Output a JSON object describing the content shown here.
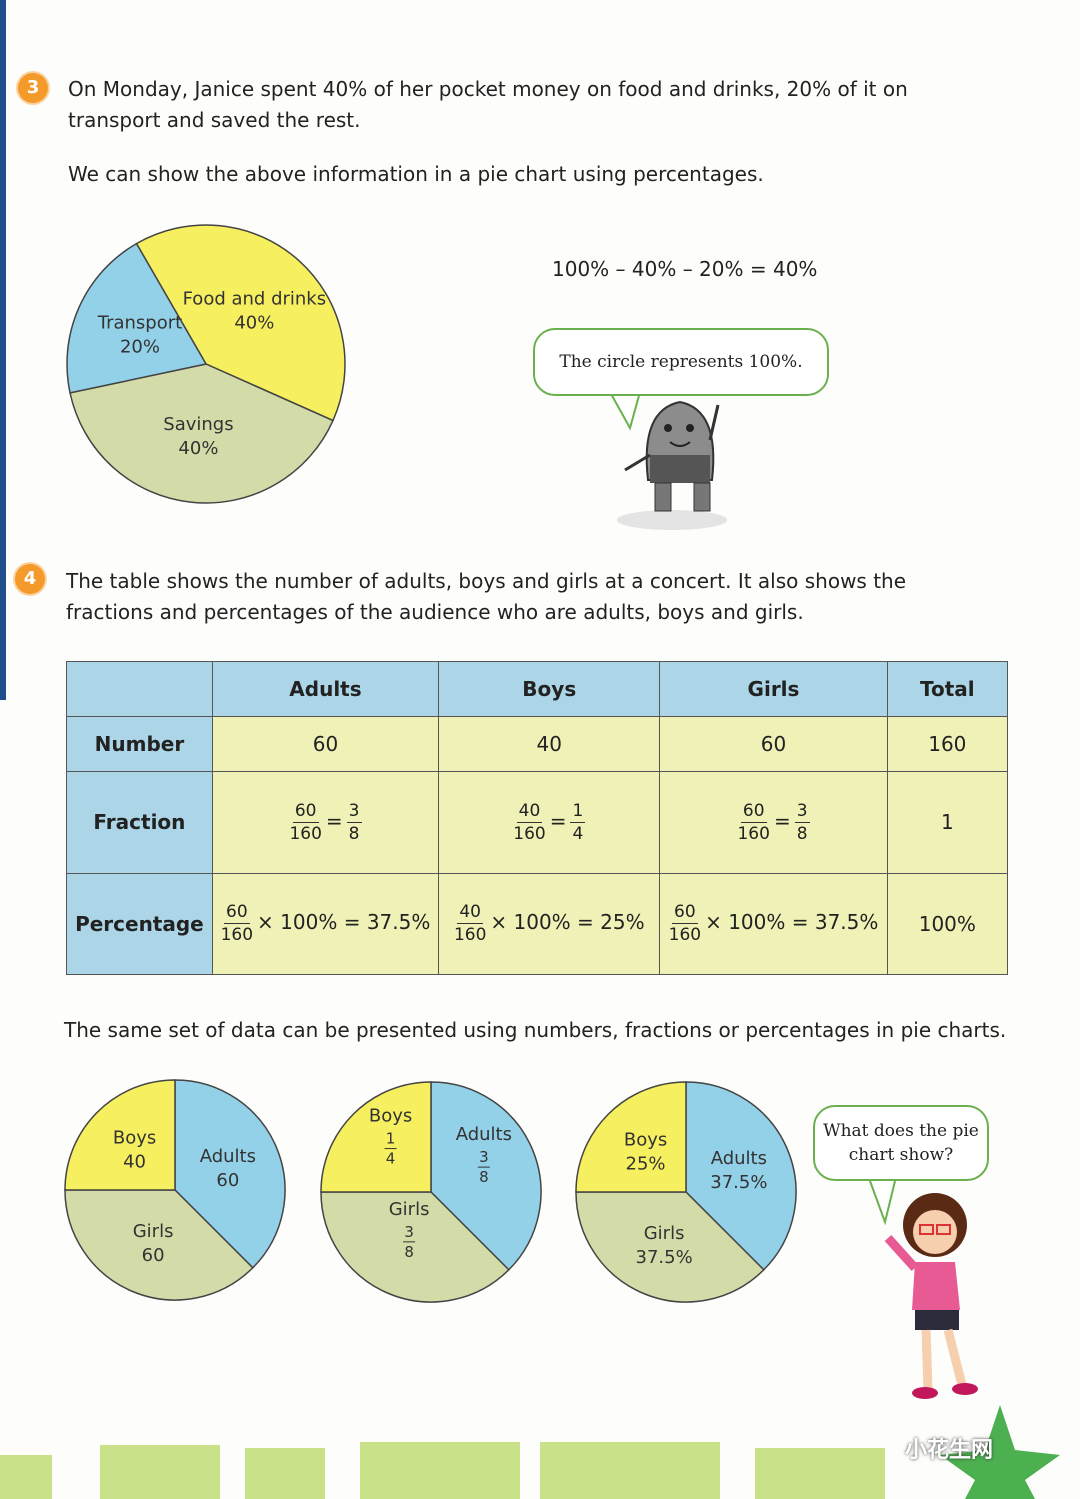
{
  "section3": {
    "badge": "3",
    "intro": "On Monday, Janice spent 40% of her pocket money on food and drinks, 20% of it on transport and saved the rest.",
    "note": "We can show the above information in a pie chart using percentages.",
    "pie": {
      "type": "pie",
      "slices": [
        {
          "name": "Food and drinks",
          "value": 40,
          "value_label": "40%",
          "color": "#f6ef5f"
        },
        {
          "name": "Savings",
          "value": 40,
          "value_label": "40%",
          "color": "#d3dba8"
        },
        {
          "name": "Transport",
          "value": 20,
          "value_label": "20%",
          "color": "#93d1e8"
        }
      ]
    },
    "equation": "100% – 40% – 20% = 40%",
    "speech": "The circle represents 100%."
  },
  "section4": {
    "badge": "4",
    "intro": "The table shows the number of adults, boys and girls at a concert. It also shows the fractions and percentages of the audience who are adults, boys and girls.",
    "table": {
      "columns": [
        "Adults",
        "Boys",
        "Girls",
        "Total"
      ],
      "rows": [
        {
          "label": "Number",
          "cells": [
            "60",
            "40",
            "60",
            "160"
          ]
        },
        {
          "label": "Fraction",
          "cells": [
            {
              "num": "60",
              "den": "160",
              "eq_num": "3",
              "eq_den": "8"
            },
            {
              "num": "40",
              "den": "160",
              "eq_num": "1",
              "eq_den": "4"
            },
            {
              "num": "60",
              "den": "160",
              "eq_num": "3",
              "eq_den": "8"
            },
            "1"
          ]
        },
        {
          "label": "Percentage",
          "cells": [
            {
              "num": "60",
              "den": "160",
              "rest": "× 100% = 37.5%"
            },
            {
              "num": "40",
              "den": "160",
              "rest": "× 100% = 25%"
            },
            {
              "num": "60",
              "den": "160",
              "rest": "× 100% = 37.5%"
            },
            "100%"
          ]
        }
      ]
    },
    "note": "The same set of data can be presented using numbers, fractions or percentages in pie charts.",
    "pies": [
      {
        "type": "pie",
        "slices": [
          {
            "name": "Adults",
            "value": 60,
            "color": "#93d1e8"
          },
          {
            "name": "Girls",
            "value": 60,
            "color": "#d3dba8"
          },
          {
            "name": "Boys",
            "value": 40,
            "color": "#f6ef5f"
          }
        ]
      },
      {
        "type": "pie",
        "slices": [
          {
            "name": "Adults",
            "value": 0.375,
            "value_label": {
              "num": "3",
              "den": "8"
            },
            "color": "#93d1e8"
          },
          {
            "name": "Girls",
            "value": 0.375,
            "value_label": {
              "num": "3",
              "den": "8"
            },
            "color": "#d3dba8"
          },
          {
            "name": "Boys",
            "value": 0.25,
            "value_label": {
              "num": "1",
              "den": "4"
            },
            "color": "#f6ef5f"
          }
        ]
      },
      {
        "type": "pie",
        "slices": [
          {
            "name": "Adults",
            "value": 37.5,
            "value_label": "37.5%",
            "color": "#93d1e8"
          },
          {
            "name": "Girls",
            "value": 37.5,
            "value_label": "37.5%",
            "color": "#d3dba8"
          },
          {
            "name": "Boys",
            "value": 25,
            "value_label": "25%",
            "color": "#f6ef5f"
          }
        ]
      }
    ],
    "speech": "What does the pie chart show?"
  },
  "watermark": "小花生网"
}
